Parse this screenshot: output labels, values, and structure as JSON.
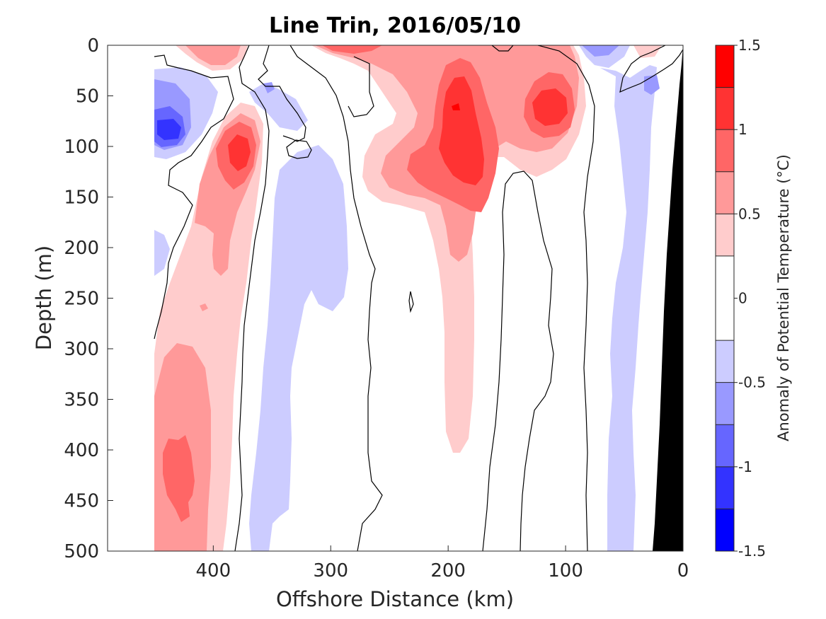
{
  "chart_data": {
    "type": "heatmap",
    "title": "Line Trin, 2016/05/10",
    "xlabel": "Offshore Distance (km)",
    "ylabel": "Depth (m)",
    "xlim": [
      490,
      0
    ],
    "ylim": [
      0,
      500
    ],
    "x_reversed": true,
    "y_reversed": true,
    "xticks": [
      400,
      300,
      200,
      100,
      0
    ],
    "yticks": [
      0,
      50,
      100,
      150,
      200,
      250,
      300,
      350,
      400,
      450,
      500
    ],
    "grid": false,
    "colorbar": {
      "label": "Anomaly of Potential Temperature (°C)",
      "range": [
        -1.5,
        1.5
      ],
      "levels": [
        -1.5,
        -1.25,
        -1.0,
        -0.75,
        -0.5,
        -0.25,
        0.25,
        0.5,
        0.75,
        1.0,
        1.25,
        1.5
      ],
      "ticks": [
        -1.5,
        -1,
        -0.5,
        0,
        0.5,
        1,
        1.5
      ],
      "tick_labels": [
        "-1.5",
        "-1",
        "-0.5",
        "0",
        "0.5",
        "1",
        "1.5"
      ],
      "colors": [
        "#0000ff",
        "#3333ff",
        "#6666ff",
        "#9999ff",
        "#ccccff",
        "#ffffff",
        "#ffcccc",
        "#ff9999",
        "#ff6666",
        "#ff3333",
        "#ff0000"
      ]
    },
    "data_extent_x": [
      452,
      0
    ],
    "anomaly_features": [
      {
        "x": 425,
        "y": 85,
        "value": -1.1
      },
      {
        "x": 445,
        "y": 55,
        "value": -0.6
      },
      {
        "x": 380,
        "y": 105,
        "value": 1.2
      },
      {
        "x": 425,
        "y": 420,
        "value": 1.0
      },
      {
        "x": 195,
        "y": 80,
        "value": 1.2
      },
      {
        "x": 110,
        "y": 60,
        "value": 1.2
      },
      {
        "x": 285,
        "y": 5,
        "value": 1.0
      },
      {
        "x": 330,
        "y": 300,
        "value": -0.4
      },
      {
        "x": 60,
        "y": 3,
        "value": -0.6
      },
      {
        "x": 25,
        "y": 40,
        "value": -0.6
      },
      {
        "x": 50,
        "y": 300,
        "value": -0.4
      }
    ],
    "bathymetry": {
      "color": "#000000",
      "surface_x": 0,
      "bottom_x": 28
    }
  }
}
